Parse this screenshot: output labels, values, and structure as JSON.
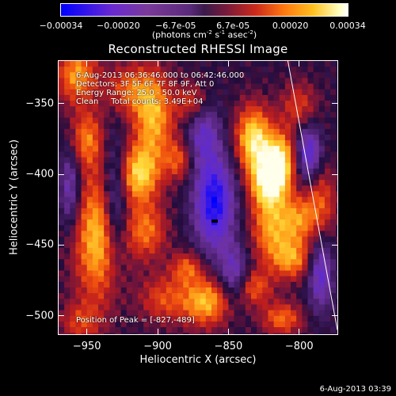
{
  "colorbar": {
    "ticks": [
      "-0.00034",
      "-0.00020",
      "-6.7e-05",
      "6.7e-05",
      "0.00020",
      "0.00034"
    ],
    "unit_prefix": "(photons cm",
    "unit_exp1": "-2",
    "unit_mid1": " s",
    "unit_exp2": "-1",
    "unit_mid2": " asec",
    "unit_exp3": "-2",
    "unit_suffix": ")"
  },
  "title": "Reconstructed RHESSI Image",
  "annotations": {
    "time_range": "6-Aug-2013 06:36:46.000 to 06:42:46.000",
    "detectors": "Detectors: 3F 5F 6F 7F 8F 9F, Att 0",
    "energy": "Energy Range: 25.0 - 50.0 keV",
    "clean": "Clean     Total counts: 3.49E+04",
    "peak": "Position of Peak = [-827,-489]"
  },
  "chart_data": {
    "type": "heatmap",
    "title": "Reconstructed RHESSI Image",
    "xlabel": "Heliocentric X (arcsec)",
    "ylabel": "Heliocentric Y (arcsec)",
    "xlim": [
      -970,
      -773
    ],
    "ylim": [
      -513,
      -320
    ],
    "xticks": [
      -950,
      -900,
      -850,
      -800
    ],
    "xtick_labels": [
      "−950",
      "−900",
      "−850",
      "−800"
    ],
    "yticks": [
      -350,
      -400,
      -450,
      -500
    ],
    "ytick_labels": [
      "−350",
      "−400",
      "−450",
      "−500"
    ],
    "colorbar_range": [
      -0.00034,
      0.00034
    ],
    "colormap": "blue-purple-red-yellow-white",
    "peak_position": [
      -827,
      -489
    ],
    "limb_line": [
      [
        -808,
        -320
      ],
      [
        -773,
        -510
      ]
    ],
    "components": [
      {
        "x": -957,
        "y": -330,
        "sx": 10,
        "sy": 14,
        "amp": 0.00022
      },
      {
        "x": -950,
        "y": -375,
        "sx": 8,
        "sy": 14,
        "amp": 0.00018
      },
      {
        "x": -942,
        "y": -445,
        "sx": 12,
        "sy": 32,
        "amp": 0.00026
      },
      {
        "x": -955,
        "y": -505,
        "sx": 10,
        "sy": 10,
        "amp": 0.00012
      },
      {
        "x": -920,
        "y": -340,
        "sx": 12,
        "sy": 12,
        "amp": 0.00016
      },
      {
        "x": -903,
        "y": -360,
        "sx": 10,
        "sy": 22,
        "amp": 0.00024
      },
      {
        "x": -913,
        "y": -400,
        "sx": 10,
        "sy": 14,
        "amp": 0.00026
      },
      {
        "x": -908,
        "y": -440,
        "sx": 10,
        "sy": 14,
        "amp": 0.00018
      },
      {
        "x": -875,
        "y": -350,
        "sx": 8,
        "sy": 10,
        "amp": 0.00015
      },
      {
        "x": -885,
        "y": -390,
        "sx": 7,
        "sy": 10,
        "amp": 0.00015
      },
      {
        "x": -896,
        "y": -488,
        "sx": 12,
        "sy": 12,
        "amp": 0.00014
      },
      {
        "x": -866,
        "y": -490,
        "sx": 12,
        "sy": 12,
        "amp": 0.00025
      },
      {
        "x": -879,
        "y": -466,
        "sx": 8,
        "sy": 8,
        "amp": 0.00016
      },
      {
        "x": -832,
        "y": -375,
        "sx": 9,
        "sy": 16,
        "amp": 0.0003
      },
      {
        "x": -822,
        "y": -405,
        "sx": 9,
        "sy": 14,
        "amp": 0.00033
      },
      {
        "x": -813,
        "y": -390,
        "sx": 7,
        "sy": 14,
        "amp": 0.00026
      },
      {
        "x": -820,
        "y": -440,
        "sx": 10,
        "sy": 16,
        "amp": 0.0002
      },
      {
        "x": -801,
        "y": -432,
        "sx": 9,
        "sy": 12,
        "amp": 0.00018
      },
      {
        "x": -805,
        "y": -460,
        "sx": 10,
        "sy": 10,
        "amp": 0.0002
      },
      {
        "x": -832,
        "y": -480,
        "sx": 9,
        "sy": 9,
        "amp": 0.00016
      },
      {
        "x": -812,
        "y": -502,
        "sx": 10,
        "sy": 8,
        "amp": 0.00018
      },
      {
        "x": -800,
        "y": -352,
        "sx": 9,
        "sy": 12,
        "amp": 0.00013
      },
      {
        "x": -785,
        "y": -420,
        "sx": 8,
        "sy": 18,
        "amp": 0.00015
      },
      {
        "x": -860,
        "y": -420,
        "sx": 10,
        "sy": 24,
        "amp": -0.00032
      },
      {
        "x": -868,
        "y": -370,
        "sx": 8,
        "sy": 16,
        "amp": -0.00018
      },
      {
        "x": -930,
        "y": -420,
        "sx": 6,
        "sy": 30,
        "amp": -0.0002
      },
      {
        "x": -962,
        "y": -410,
        "sx": 5,
        "sy": 20,
        "amp": -0.00018
      },
      {
        "x": -793,
        "y": -385,
        "sx": 6,
        "sy": 14,
        "amp": -0.00024
      },
      {
        "x": -785,
        "y": -470,
        "sx": 6,
        "sy": 18,
        "amp": -0.00022
      },
      {
        "x": -846,
        "y": -470,
        "sx": 7,
        "sy": 14,
        "amp": -0.00018
      }
    ]
  },
  "footer": {
    "date": "6-Aug-2013 03:39"
  }
}
